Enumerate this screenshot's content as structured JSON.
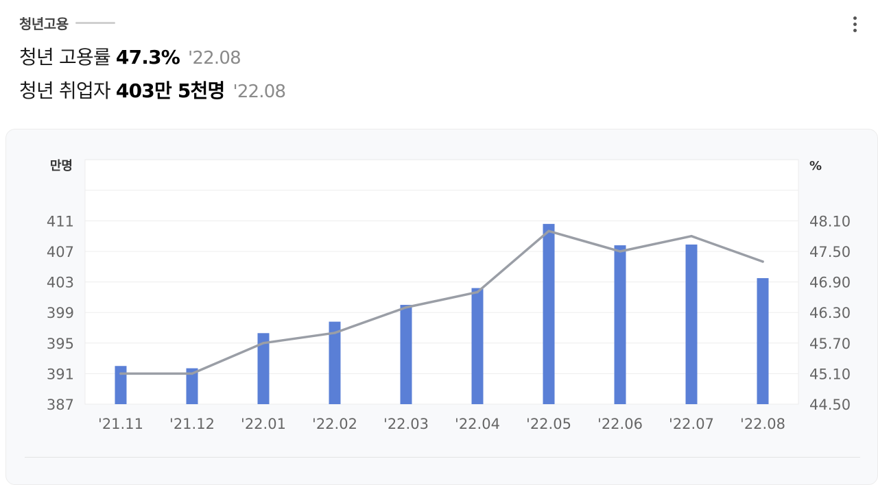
{
  "header": {
    "section_title": "청년고용",
    "stats": [
      {
        "label": "청년 고용률",
        "value": "47.3%",
        "date": "'22.08"
      },
      {
        "label": "청년 취업자",
        "value": "403만 5천명",
        "date": "'22.08"
      }
    ]
  },
  "icons": {
    "more": "more-vertical-icon"
  },
  "colors": {
    "bar": "#5a7fd6",
    "line": "#9a9ea6",
    "grid": "#ededed"
  },
  "chart_data": {
    "type": "bar",
    "categories": [
      "'21.11",
      "'21.12",
      "'22.01",
      "'22.02",
      "'22.03",
      "'22.04",
      "'22.05",
      "'22.06",
      "'22.07",
      "'22.08"
    ],
    "left_unit": "만명",
    "right_unit": "%",
    "left_ticks": [
      387,
      391,
      395,
      399,
      403,
      407,
      411
    ],
    "right_ticks": [
      "44.50",
      "45.10",
      "45.70",
      "46.30",
      "46.90",
      "47.50",
      "48.10"
    ],
    "ylim_left": [
      387,
      411
    ],
    "ylim_right": [
      44.5,
      48.1
    ],
    "grid": true,
    "series": [
      {
        "type": "bar",
        "axis": "left",
        "values": [
          392.0,
          391.7,
          396.3,
          397.8,
          400.0,
          402.2,
          410.6,
          407.8,
          407.9,
          403.5
        ]
      },
      {
        "type": "line",
        "axis": "right",
        "values": [
          45.1,
          45.1,
          45.7,
          45.9,
          46.4,
          46.7,
          47.9,
          47.5,
          47.8,
          47.3
        ]
      }
    ]
  }
}
